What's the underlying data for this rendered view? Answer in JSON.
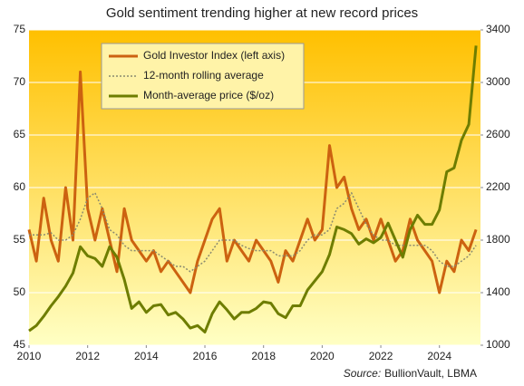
{
  "chart_data": {
    "type": "line",
    "title": "Gold sentiment trending higher at new record prices",
    "source_label": "Source:",
    "source": "BullionVault, LBMA",
    "x": [
      2010,
      2010.25,
      2010.5,
      2010.75,
      2011,
      2011.25,
      2011.5,
      2011.75,
      2012,
      2012.25,
      2012.5,
      2012.75,
      2013,
      2013.25,
      2013.5,
      2013.75,
      2014,
      2014.25,
      2014.5,
      2014.75,
      2015,
      2015.25,
      2015.5,
      2015.75,
      2016,
      2016.25,
      2016.5,
      2016.75,
      2017,
      2017.25,
      2017.5,
      2017.75,
      2018,
      2018.25,
      2018.5,
      2018.75,
      2019,
      2019.25,
      2019.5,
      2019.75,
      2020,
      2020.25,
      2020.5,
      2020.75,
      2021,
      2021.25,
      2021.5,
      2021.75,
      2022,
      2022.25,
      2022.5,
      2022.75,
      2023,
      2023.25,
      2023.5,
      2023.75,
      2024,
      2024.25,
      2024.5,
      2024.75,
      2025,
      2025.25
    ],
    "xlim": [
      2010,
      2025.4
    ],
    "xticks": [
      2010,
      2012,
      2014,
      2016,
      2018,
      2020,
      2022,
      2024
    ],
    "ylim": [
      45,
      75
    ],
    "yticks": [
      45,
      50,
      55,
      60,
      65,
      70,
      75
    ],
    "y2lim": [
      1000,
      3400
    ],
    "y2ticks": [
      1000,
      1400,
      1800,
      2200,
      2600,
      3000,
      3400
    ],
    "grid": true,
    "series": [
      {
        "name": "Gold Investor Index (left axis)",
        "color": "#cc6210",
        "style": "solid",
        "values": [
          56,
          53,
          59,
          55,
          53,
          60,
          55,
          71,
          58,
          55,
          58,
          55,
          52,
          58,
          55,
          54,
          53,
          54,
          52,
          53,
          52,
          51,
          50,
          53,
          55,
          57,
          58,
          53,
          55,
          54,
          53,
          55,
          54,
          53,
          51,
          54,
          53,
          55,
          57,
          55,
          56,
          64,
          60,
          61,
          58,
          56,
          57,
          55,
          57,
          55,
          53,
          54,
          57,
          55,
          54,
          53,
          50,
          53,
          52,
          55,
          54,
          56
        ]
      },
      {
        "name": "12-month rolling average",
        "color": "#8a8a70",
        "style": "dotted",
        "values": [
          55.5,
          55.5,
          55.5,
          55.7,
          55,
          55,
          55.5,
          57,
          59,
          59.5,
          58,
          56,
          55.5,
          54.5,
          54,
          54,
          54,
          54,
          53.5,
          53,
          52.5,
          52.5,
          52,
          52.5,
          53,
          54,
          55,
          55,
          55,
          54.5,
          54.2,
          54,
          54,
          54,
          53.5,
          53.5,
          53.5,
          54,
          55,
          55.5,
          55.5,
          56,
          58,
          58.5,
          59.5,
          58,
          56.5,
          55.5,
          55,
          55,
          54.5,
          54.5,
          54.5,
          54.5,
          54.5,
          54,
          53,
          52.5,
          52.5,
          53,
          53.5,
          54.5
        ]
      },
      {
        "name": "Month-average price ($/oz)",
        "color": "#6e7d00",
        "style": "solid",
        "axis": "y2",
        "values": [
          1110,
          1150,
          1220,
          1300,
          1370,
          1450,
          1550,
          1750,
          1680,
          1660,
          1600,
          1750,
          1670,
          1500,
          1280,
          1330,
          1250,
          1300,
          1310,
          1230,
          1250,
          1200,
          1130,
          1150,
          1100,
          1240,
          1330,
          1270,
          1200,
          1250,
          1250,
          1280,
          1330,
          1320,
          1240,
          1210,
          1300,
          1300,
          1420,
          1490,
          1560,
          1690,
          1900,
          1880,
          1850,
          1770,
          1810,
          1780,
          1820,
          1930,
          1800,
          1670,
          1880,
          1990,
          1920,
          1920,
          2030,
          2320,
          2350,
          2560,
          2680,
          3280
        ]
      }
    ]
  }
}
